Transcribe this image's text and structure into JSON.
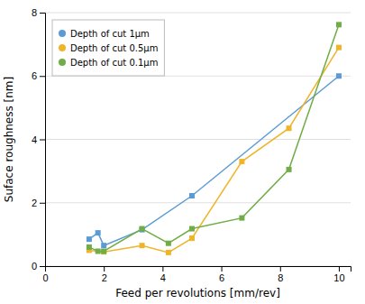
{
  "chart_data": {
    "type": "line",
    "xlabel": "Feed per revolutions [mm/rev]",
    "ylabel": "Suface roughness [nm]",
    "series": [
      {
        "name": "Depth of cut 1μm",
        "color": "#5b9bd5",
        "marker": "square",
        "x": [
          1.5,
          1.8,
          2.0,
          3.3,
          5.0,
          10.0
        ],
        "values": [
          0.85,
          1.05,
          0.65,
          1.15,
          2.22,
          6.0
        ]
      },
      {
        "name": "Depth of cut 0.5μm",
        "color": "#f0b429",
        "marker": "square",
        "x": [
          1.5,
          2.0,
          3.3,
          4.2,
          5.0,
          6.7,
          8.3,
          10.0
        ],
        "values": [
          0.5,
          0.45,
          0.65,
          0.43,
          0.88,
          3.3,
          4.35,
          6.9
        ]
      },
      {
        "name": "Depth of cut 0.1μm",
        "color": "#70ad47",
        "marker": "square",
        "x": [
          1.5,
          1.8,
          2.0,
          3.3,
          4.2,
          5.0,
          6.7,
          8.3,
          10.0
        ],
        "values": [
          0.6,
          0.47,
          0.47,
          1.18,
          0.72,
          1.18,
          1.52,
          3.05,
          7.62
        ]
      }
    ],
    "xlim": [
      0,
      10.4
    ],
    "ylim": [
      0,
      8
    ],
    "xticks": [
      0,
      2,
      4,
      6,
      8,
      10
    ],
    "yticks": [
      0,
      2,
      4,
      6,
      8
    ],
    "grid": "y",
    "legend": "upper left"
  }
}
